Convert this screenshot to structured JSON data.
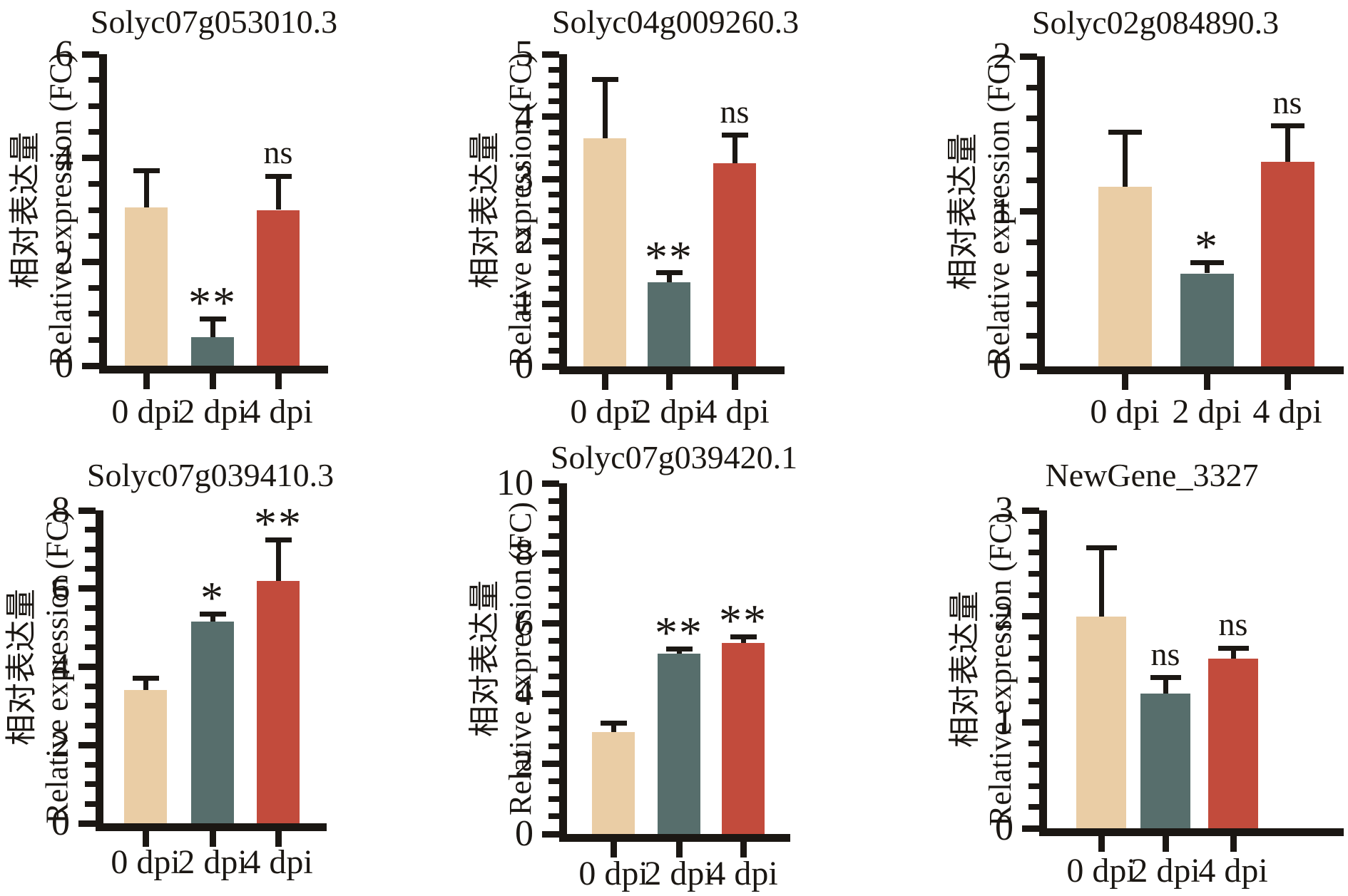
{
  "figure": {
    "background": "#ffffff",
    "description": "qRT-PCR relative expression bar charts, 2 rows x 3 columns"
  },
  "colors": {
    "bar_0dpi": "#eacda5",
    "bar_2dpi": "#576e6c",
    "bar_4dpi": "#c24b3c",
    "axis": "#1b1713"
  },
  "axis_labels": {
    "ylabel_line1": "相对表达量",
    "ylabel_line2": "Relative expression (FC)"
  },
  "categories": [
    "0 dpi",
    "2 dpi",
    "4 dpi"
  ],
  "chart_data": [
    {
      "type": "bar",
      "title": "Solyc07g053010.3",
      "categories": [
        "0 dpi",
        "2 dpi",
        "4 dpi"
      ],
      "values": [
        3.05,
        0.55,
        3.0
      ],
      "errors_upper": [
        0.7,
        0.35,
        0.65
      ],
      "significance": [
        "",
        "**",
        "ns"
      ],
      "ylim": [
        0,
        6
      ],
      "yticks": [
        0,
        2,
        4,
        6
      ],
      "minor_tick_step": 0.5,
      "xlabel": "",
      "ylabel": "相对表达量 Relative expression (FC)",
      "grid": false,
      "legend": "none"
    },
    {
      "type": "bar",
      "title": "Solyc04g009260.3",
      "categories": [
        "0 dpi",
        "2 dpi",
        "4 dpi"
      ],
      "values": [
        3.65,
        1.35,
        3.25
      ],
      "errors_upper": [
        0.95,
        0.15,
        0.45
      ],
      "significance": [
        "",
        "**",
        "ns"
      ],
      "ylim": [
        0,
        5
      ],
      "yticks": [
        0,
        1,
        2,
        3,
        4,
        5
      ],
      "minor_tick_step": 0.25,
      "xlabel": "",
      "ylabel": "相对表达量 Relative expression (FC)",
      "grid": false,
      "legend": "none"
    },
    {
      "type": "bar",
      "title": "Solyc02g084890.3",
      "categories": [
        "0 dpi",
        "2 dpi",
        "4 dpi"
      ],
      "values": [
        1.16,
        0.6,
        1.32
      ],
      "errors_upper": [
        0.35,
        0.07,
        0.23
      ],
      "significance": [
        "",
        "*",
        "ns"
      ],
      "ylim": [
        0,
        2
      ],
      "yticks": [
        0,
        1,
        2
      ],
      "minor_tick_step": 0.2,
      "xlabel": "",
      "ylabel": "相对表达量 Relative expression (FC)",
      "grid": false,
      "legend": "none"
    },
    {
      "type": "bar",
      "title": "Solyc07g039410.3",
      "categories": [
        "0 dpi",
        "2 dpi",
        "4 dpi"
      ],
      "values": [
        3.4,
        5.15,
        6.2
      ],
      "errors_upper": [
        0.3,
        0.2,
        1.05
      ],
      "significance": [
        "",
        "*",
        "**"
      ],
      "ylim": [
        0,
        8
      ],
      "yticks": [
        0,
        2,
        4,
        6,
        8
      ],
      "minor_tick_step": 0.5,
      "xlabel": "",
      "ylabel": "相对表达量 Relative expression (FC)",
      "grid": false,
      "legend": "none"
    },
    {
      "type": "bar",
      "title": "Solyc07g039420.1",
      "categories": [
        "0 dpi",
        "2 dpi",
        "4 dpi"
      ],
      "values": [
        2.9,
        5.15,
        5.45
      ],
      "errors_upper": [
        0.27,
        0.13,
        0.18
      ],
      "significance": [
        "",
        "**",
        "**"
      ],
      "ylim": [
        0,
        10
      ],
      "yticks": [
        0,
        2,
        4,
        6,
        8,
        10
      ],
      "minor_tick_step": 0.5,
      "xlabel": "",
      "ylabel": "相对表达量 Relative expression (FC)",
      "grid": false,
      "legend": "none"
    },
    {
      "type": "bar",
      "title": "NewGene_3327",
      "categories": [
        "0 dpi",
        "2 dpi",
        "4 dpi"
      ],
      "values": [
        2.0,
        1.27,
        1.6
      ],
      "errors_upper": [
        0.65,
        0.15,
        0.1
      ],
      "significance": [
        "",
        "ns",
        "ns"
      ],
      "ylim": [
        0,
        3
      ],
      "yticks": [
        0,
        1,
        2,
        3
      ],
      "minor_tick_step": 0.2,
      "xlabel": "",
      "ylabel": "相对表达量 Relative expression (FC)",
      "grid": false,
      "legend": "none"
    }
  ]
}
